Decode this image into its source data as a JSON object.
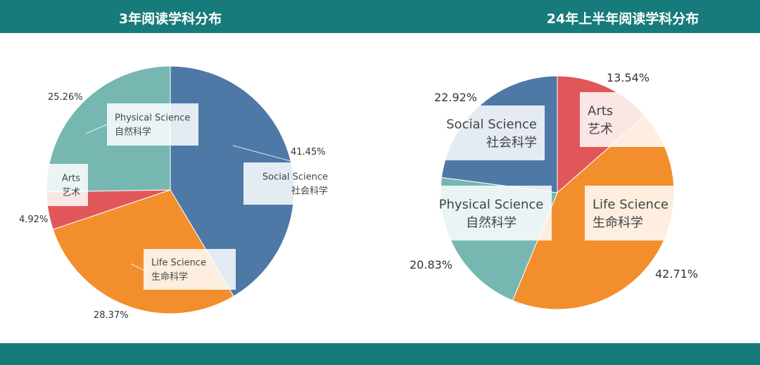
{
  "theme": {
    "band_color": "#177b7b"
  },
  "chart_data": [
    {
      "type": "pie",
      "title": "3年阅读学科分布",
      "slices": [
        {
          "label": "Social Science",
          "label_cn": "社会科学",
          "value": 41.45,
          "pct_text": "41.45%",
          "color": "#4e79a7"
        },
        {
          "label": "Life Science",
          "label_cn": "生命科学",
          "value": 28.37,
          "pct_text": "28.37%",
          "color": "#f28e2b"
        },
        {
          "label": "Arts",
          "label_cn": "艺术",
          "value": 4.92,
          "pct_text": "4.92%",
          "color": "#e15759"
        },
        {
          "label": "Physical Science",
          "label_cn": "自然科学",
          "value": 25.26,
          "pct_text": "25.26%",
          "color": "#76b7b2"
        }
      ]
    },
    {
      "type": "pie",
      "title": "24年上半年阅读学科分布",
      "slices": [
        {
          "label": "Arts",
          "label_cn": "艺术",
          "value": 13.54,
          "pct_text": "13.54%",
          "color": "#e15759"
        },
        {
          "label": "Life Science",
          "label_cn": "生命科学",
          "value": 42.71,
          "pct_text": "42.71%",
          "color": "#f28e2b"
        },
        {
          "label": "Physical Science",
          "label_cn": "自然科学",
          "value": 20.83,
          "pct_text": "20.83%",
          "color": "#76b7b2"
        },
        {
          "label": "Social Science",
          "label_cn": "社会科学",
          "value": 22.92,
          "pct_text": "22.92%",
          "color": "#4e79a7"
        }
      ]
    }
  ]
}
